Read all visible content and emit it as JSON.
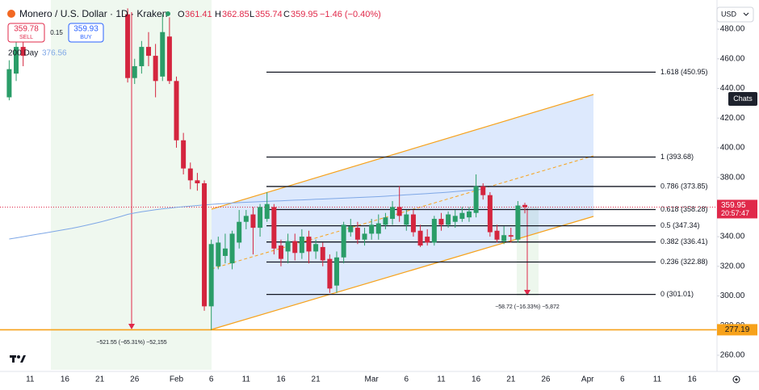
{
  "header": {
    "o": "O",
    "h": "H",
    "l": "L",
    "c": "C",
    "change": "−1.46 (−0.40%)",
    "sell": 359.78,
    "sell_label": "SELL",
    "spread": 0.15,
    "buy": 359.93,
    "buy_label": "BUY",
    "currency": "USD",
    "chats": "Chats"
  },
  "chart_data": {
    "type": "candlestick",
    "title": "Monero / U.S. Dollar · 1D · Kraken",
    "categories": [
      null,
      null,
      null,
      "11",
      null,
      null,
      null,
      null,
      "16",
      null,
      null,
      null,
      null,
      "21",
      null,
      null,
      null,
      null,
      "26",
      null,
      null,
      null,
      null,
      null,
      "Feb",
      null,
      null,
      null,
      null,
      "6",
      null,
      null,
      null,
      null,
      "11",
      null,
      null,
      null,
      null,
      "16",
      null,
      null,
      null,
      null,
      "21",
      null,
      null,
      null,
      null,
      null,
      null,
      null,
      "Mar",
      null,
      null,
      null,
      null,
      "6",
      null,
      null,
      null,
      null,
      "11",
      null,
      null,
      null,
      null,
      "16",
      null,
      null,
      null,
      null,
      "21",
      null,
      null,
      null,
      null,
      "26",
      null,
      null,
      null,
      null,
      null,
      "Apr",
      null,
      null,
      null,
      null,
      "6",
      null,
      null,
      null,
      null,
      "11",
      null,
      null,
      null,
      null,
      "16",
      null,
      null
    ],
    "open": [
      434,
      450,
      468,
      null,
      null,
      null,
      null,
      null,
      null,
      null,
      null,
      null,
      null,
      null,
      null,
      null,
      null,
      490,
      447,
      455,
      468,
      462,
      448,
      475,
      445,
      405,
      386,
      378,
      376,
      293,
      320,
      327,
      322,
      336,
      350,
      355,
      346,
      352,
      360,
      334,
      330,
      337,
      329,
      340,
      330,
      333,
      325,
      307,
      326,
      343,
      346,
      338,
      342,
      342,
      348,
      352,
      360,
      348,
      355,
      344,
      340,
      336,
      352,
      348,
      350,
      352,
      353,
      356,
      374,
      368,
      344,
      337,
      341,
      338,
      361.41,
      null,
      null,
      null,
      null,
      null,
      null,
      null,
      null,
      null,
      null,
      null,
      null,
      null,
      null,
      null,
      null,
      null,
      null,
      null,
      null,
      null,
      null,
      null,
      null,
      null,
      null
    ],
    "high": [
      459,
      475,
      480,
      null,
      null,
      null,
      null,
      null,
      null,
      null,
      null,
      null,
      null,
      null,
      null,
      null,
      null,
      494,
      460,
      472,
      478,
      470,
      490,
      488,
      448,
      410,
      390,
      383,
      378,
      338,
      340,
      342,
      344,
      358,
      358,
      360,
      362,
      370,
      362,
      338,
      342,
      342,
      345,
      344,
      338,
      336,
      328,
      330,
      350,
      352,
      350,
      346,
      352,
      355,
      356,
      364,
      374,
      358,
      358,
      348,
      345,
      354,
      356,
      357,
      358,
      360,
      360,
      382,
      376,
      370,
      348,
      347,
      346,
      364,
      362.85,
      null,
      null,
      null,
      null,
      null,
      null,
      null,
      null,
      null,
      null,
      null,
      null,
      null,
      null,
      null,
      null,
      null,
      null,
      null,
      null,
      null,
      null,
      null,
      null,
      null,
      null
    ],
    "low": [
      432,
      445,
      455,
      null,
      null,
      null,
      null,
      null,
      null,
      null,
      null,
      null,
      null,
      null,
      null,
      null,
      null,
      444,
      443,
      450,
      455,
      434,
      445,
      443,
      400,
      382,
      372,
      371,
      290,
      277,
      318,
      322,
      318,
      332,
      345,
      328,
      340,
      350,
      328,
      320,
      322,
      324,
      325,
      322,
      325,
      320,
      302,
      302,
      322,
      340,
      335,
      334,
      338,
      338,
      345,
      348,
      350,
      344,
      340,
      333,
      334,
      334,
      344,
      346,
      346,
      350,
      350,
      353,
      365,
      340,
      336,
      335,
      336,
      336,
      355.74,
      null,
      null,
      null,
      null,
      null,
      null,
      null,
      null,
      null,
      null,
      null,
      null,
      null,
      null,
      null,
      null,
      null,
      null,
      null,
      null,
      null,
      null,
      null,
      null,
      null,
      null
    ],
    "close": [
      453,
      468,
      462,
      null,
      null,
      null,
      null,
      null,
      null,
      null,
      null,
      null,
      null,
      null,
      null,
      null,
      null,
      447,
      455,
      468,
      462,
      445,
      478,
      445,
      405,
      386,
      378,
      376,
      293,
      335,
      336,
      332,
      342,
      350,
      354,
      346,
      360,
      362,
      332,
      325,
      337,
      329,
      340,
      330,
      335,
      324,
      305,
      326,
      348,
      347,
      338,
      342,
      348,
      349,
      353,
      360,
      354,
      355,
      343,
      334,
      336,
      352,
      348,
      355,
      354,
      356,
      357,
      374,
      368,
      343,
      338,
      341,
      340,
      361,
      359.95,
      null,
      null,
      null,
      null,
      null,
      null,
      null,
      null,
      null,
      null,
      null,
      null,
      null,
      null,
      null,
      null,
      null,
      null,
      null,
      null,
      null,
      null,
      null,
      null,
      null,
      null
    ],
    "up_color": "#2a9d68",
    "down_color": "#d4253e",
    "ma": {
      "name": "200 Day",
      "value": 376.56,
      "color": "#7ea7e6",
      "values": [
        338.4,
        339.2,
        340.0,
        340.8,
        341.6,
        342.4,
        343.2,
        344.0,
        344.8,
        345.6,
        346.6,
        347.6,
        348.7,
        349.8,
        351.0,
        352.3,
        353.6,
        355.0,
        356.0,
        356.8,
        357.5,
        358.2,
        358.8,
        359.3,
        359.8,
        360.2,
        360.6,
        361.0,
        361.4,
        361.8,
        362.1,
        362.4,
        362.7,
        363.0,
        363.2,
        363.4,
        363.6,
        363.8,
        364.0,
        364.2,
        364.4,
        364.6,
        364.8,
        365.0,
        365.2,
        365.4,
        365.6,
        365.8,
        366.0,
        366.2,
        366.4,
        366.6,
        366.8,
        367.0,
        367.3,
        367.6,
        367.9,
        368.2,
        368.5,
        368.8,
        369.1,
        369.4,
        369.7,
        370.0,
        370.4,
        370.8,
        371.2,
        371.6,
        372.0,
        null,
        null,
        null,
        null,
        null,
        null,
        null,
        null,
        null,
        null,
        null,
        null,
        null,
        null,
        null,
        null,
        null,
        null,
        null,
        null,
        null,
        null,
        null,
        null,
        null,
        null,
        null,
        null,
        null,
        null,
        null,
        null
      ]
    },
    "ylim": [
      251.8,
      494.2
    ],
    "yticks": [
      {
        "value": 480,
        "label": "480.00"
      },
      {
        "value": 460,
        "label": "460.00"
      },
      {
        "value": 440,
        "label": "440.00"
      },
      {
        "value": 420,
        "label": "420.00"
      },
      {
        "value": 400,
        "label": "400.00"
      },
      {
        "value": 380,
        "label": "380.00"
      },
      {
        "value": 360,
        "label": "360.00"
      },
      {
        "value": 340,
        "label": "340.00"
      },
      {
        "value": 320,
        "label": "320.00"
      },
      {
        "value": 300,
        "label": "300.00"
      },
      {
        "value": 280,
        "label": "280.00"
      },
      {
        "value": 260,
        "label": "260.00"
      }
    ],
    "fib_levels": [
      {
        "label": "1.618 (450.95)",
        "value": 450.95
      },
      {
        "label": "1 (393.68)",
        "value": 393.68
      },
      {
        "label": "0.786 (373.85)",
        "value": 373.85
      },
      {
        "label": "0.618 (358.28)",
        "value": 358.28
      },
      {
        "label": "0.5 (347.34)",
        "value": 347.34
      },
      {
        "label": "0.382 (336.41)",
        "value": 336.41
      },
      {
        "label": "0.236 (322.88)",
        "value": 322.88
      },
      {
        "label": "0 (301.01)",
        "value": 301.01
      }
    ],
    "last_price": {
      "value": 359.95,
      "time": "20:57:47",
      "color": "#e0294a"
    },
    "support": {
      "value": 277.19,
      "color": "#f7a21b"
    },
    "measures": [
      "−521.55 (−65.31%) −52,155",
      "−58.72 (−16.33%) −5,872"
    ]
  }
}
